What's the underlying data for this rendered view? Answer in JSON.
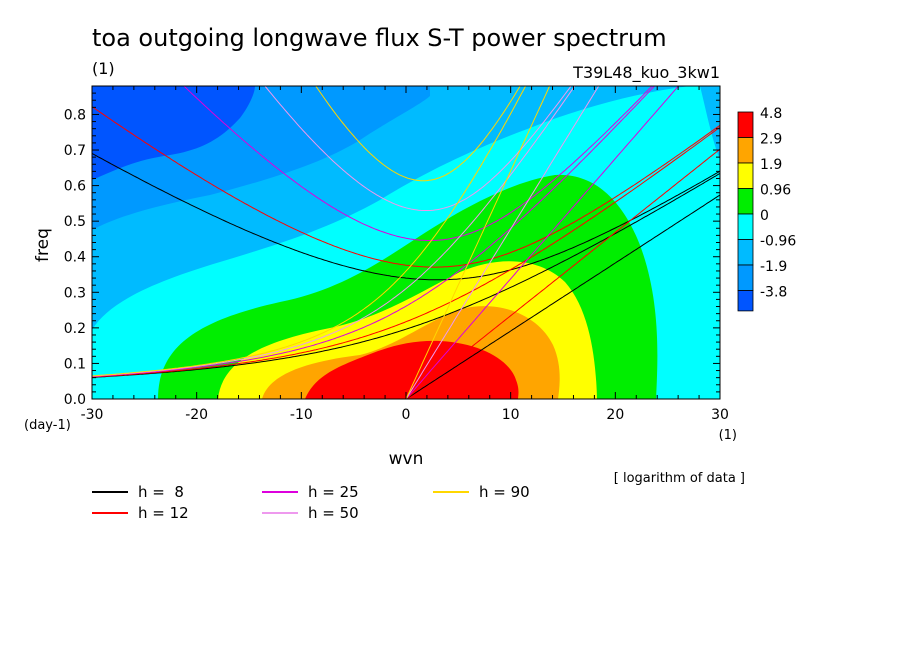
{
  "chart_data": {
    "type": "heatmap",
    "title": "toa outgoing longwave flux S-T power spectrum",
    "subtitle_units": "(1)",
    "experiment": "T39L48_kuo_3kw1",
    "xlabel": "wvn",
    "ylabel": "freq",
    "x_units": "(1)",
    "y_units": "(day-1)",
    "xlim": [
      -30,
      30
    ],
    "ylim": [
      0,
      0.88
    ],
    "x_ticks": [
      "-30",
      "-20",
      "-10",
      "0",
      "10",
      "20",
      "30"
    ],
    "x_tick_values": [
      -30,
      -20,
      -10,
      0,
      10,
      20,
      30
    ],
    "y_ticks": [
      "0.0",
      "0.1",
      "0.2",
      "0.3",
      "0.4",
      "0.5",
      "0.6",
      "0.7",
      "0.8"
    ],
    "y_tick_values": [
      0,
      0.1,
      0.2,
      0.3,
      0.4,
      0.5,
      0.6,
      0.7,
      0.8
    ],
    "note": "[ logarithm of data ]",
    "colorbar": {
      "levels": [
        "4.8",
        "2.9",
        "1.9",
        "0.96",
        "0",
        "-0.96",
        "-1.9",
        "-3.8"
      ],
      "colors": [
        "#ff0000",
        "#ffa500",
        "#ffff00",
        "#00ee00",
        "#00ffff",
        "#00bbff",
        "#0099ff",
        "#0055ff"
      ]
    },
    "shading_colors": {
      "band6": "#0055ff",
      "band5": "#0099ff",
      "band4": "#00bbff",
      "band3": "#00ffff",
      "band2": "#00ee00",
      "band1": "#ffff00",
      "band0": "#ffa500",
      "peak": "#ff0000"
    },
    "dispersion_curves": [
      {
        "name": "h = 8",
        "label": "h =  8",
        "h": 8,
        "color": "#000000"
      },
      {
        "name": "h = 12",
        "label": "h = 12",
        "h": 12,
        "color": "#ff0000"
      },
      {
        "name": "h = 25",
        "label": "h = 25",
        "h": 25,
        "color": "#dd00dd"
      },
      {
        "name": "h = 50",
        "label": "h = 50",
        "h": 50,
        "color": "#ee99ee"
      },
      {
        "name": "h = 90",
        "label": "h = 90",
        "h": 90,
        "color": "#ffd700"
      }
    ]
  }
}
